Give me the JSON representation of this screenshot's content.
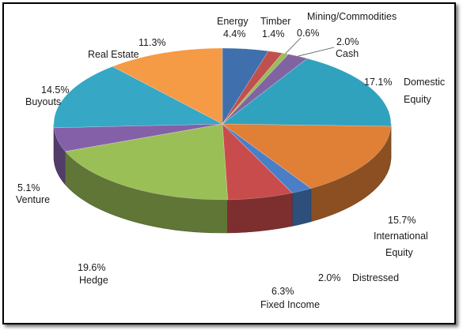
{
  "chart_data": {
    "type": "pie",
    "style": "3d",
    "title": "",
    "start_angle_deg": -90,
    "direction": "clockwise",
    "slices": [
      {
        "name": "Energy",
        "value": 4.4,
        "label": "4.4%",
        "color": "#3f6fad"
      },
      {
        "name": "Timber",
        "value": 1.4,
        "label": "1.4%",
        "color": "#c0504d"
      },
      {
        "name": "Mining/Commodities",
        "value": 0.6,
        "label": "0.6%",
        "color": "#9bbb59"
      },
      {
        "name": "Cash",
        "value": 2.0,
        "label": "2.0%",
        "color": "#8064a2"
      },
      {
        "name": "Domestic Equity",
        "value": 17.1,
        "label": "17.1%",
        "color": "#31a2bd"
      },
      {
        "name": "International Equity",
        "value": 15.7,
        "label": "15.7%",
        "color": "#e07f36"
      },
      {
        "name": "Distressed",
        "value": 2.0,
        "label": "2.0%",
        "color": "#4a7ec7"
      },
      {
        "name": "Fixed Income",
        "value": 6.3,
        "label": "6.3%",
        "color": "#c94c4c"
      },
      {
        "name": "Hedge",
        "value": 19.6,
        "label": "19.6%",
        "color": "#9bbf57"
      },
      {
        "name": "Venture",
        "value": 5.1,
        "label": "5.1%",
        "color": "#8460a9"
      },
      {
        "name": "Buyouts",
        "value": 14.5,
        "label": "14.5%",
        "color": "#36a7c4"
      },
      {
        "name": "Real Estate",
        "value": 11.3,
        "label": "11.3%",
        "color": "#f59a45"
      }
    ]
  },
  "labels": {
    "energy": {
      "name": "Energy",
      "pct": "4.4%"
    },
    "timber": {
      "name": "Timber",
      "pct": "1.4%"
    },
    "mining": {
      "name": "Mining/Commodities",
      "pct": "0.6%"
    },
    "cash": {
      "pct": "2.0%",
      "name": "Cash"
    },
    "domestic": {
      "pct": "17.1%",
      "line1": "Domestic",
      "line2": "Equity"
    },
    "international": {
      "pct": "15.7%",
      "line1": "International",
      "line2": "Equity"
    },
    "distressed": {
      "pct": "2.0%",
      "name": "Distressed"
    },
    "fixed_income": {
      "pct": "6.3%",
      "name": "Fixed Income"
    },
    "hedge": {
      "pct": "19.6%",
      "name": "Hedge"
    },
    "venture": {
      "pct": "5.1%",
      "name": "Venture"
    },
    "buyouts": {
      "pct": "14.5%",
      "name": "Buyouts"
    },
    "real_estate": {
      "name": "Real Estate",
      "pct": "11.3%"
    }
  }
}
